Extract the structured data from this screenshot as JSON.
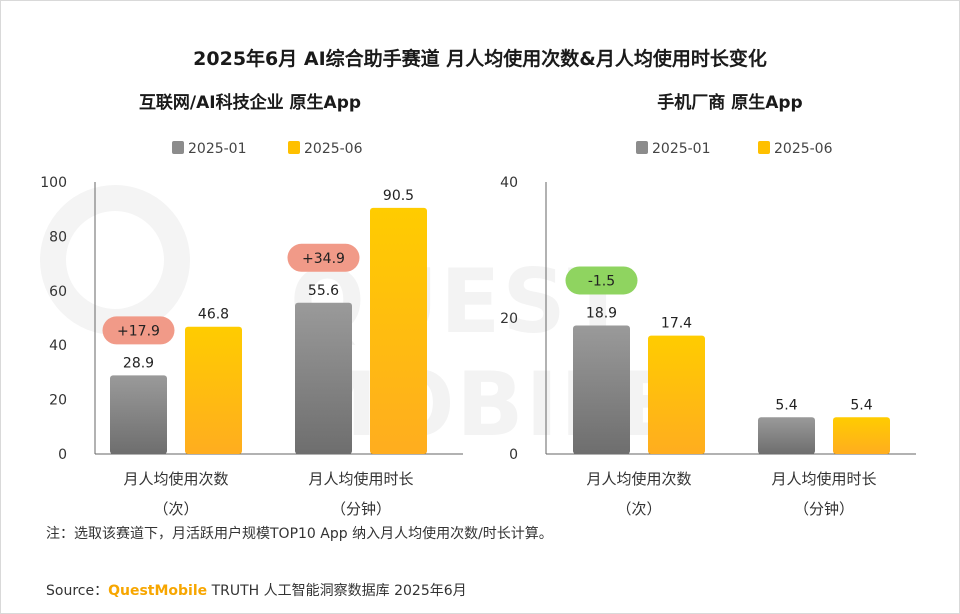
{
  "title": "2025年6月 AI综合助手赛道 月人均使用次数&月人均使用时长变化",
  "colors": {
    "series1": "#8c8c8c",
    "series2": "#ffc000",
    "diff_negative": "#f19a88",
    "diff_positive": "#8fd460"
  },
  "chart_data": [
    {
      "type": "bar",
      "title": "互联网/AI科技企业 原生App",
      "legend": [
        "2025-01",
        "2025-06"
      ],
      "ylim": [
        0,
        100
      ],
      "yticks": [
        0,
        20,
        40,
        60,
        80,
        100
      ],
      "categories": [
        {
          "line1": "月人均使用次数",
          "line2": "（次）"
        },
        {
          "line1": "月人均使用时长",
          "line2": "（分钟）"
        }
      ],
      "series": [
        {
          "name": "2025-01",
          "values": [
            28.9,
            55.6
          ],
          "labels": [
            "28.9",
            "55.6"
          ]
        },
        {
          "name": "2025-06",
          "values": [
            46.8,
            90.5
          ],
          "labels": [
            "46.8",
            "90.5"
          ]
        }
      ],
      "differences": [
        {
          "label": "+17.9",
          "sign": "positive"
        },
        {
          "label": "+34.9",
          "sign": "positive"
        }
      ]
    },
    {
      "type": "bar",
      "title": "手机厂商 原生App",
      "legend": [
        "2025-01",
        "2025-06"
      ],
      "ylim": [
        0,
        40
      ],
      "yticks": [
        0,
        20,
        40
      ],
      "categories": [
        {
          "line1": "月人均使用次数",
          "line2": "（次）"
        },
        {
          "line1": "月人均使用时长",
          "line2": "（分钟）"
        }
      ],
      "series": [
        {
          "name": "2025-01",
          "values": [
            18.9,
            5.4
          ],
          "labels": [
            "18.9",
            "5.4"
          ]
        },
        {
          "name": "2025-06",
          "values": [
            17.4,
            5.4
          ],
          "labels": [
            "17.4",
            "5.4"
          ]
        }
      ],
      "differences": [
        {
          "label": "-1.5",
          "sign": "negative"
        },
        null
      ]
    }
  ],
  "note": "注：选取该赛道下，月活跃用户规模TOP10 App 纳入月人均使用次数/时长计算。",
  "source": {
    "prefix": "Source：",
    "brand": "QuestMobile",
    "suffix": " TRUTH 人工智能洞察数据库 2025年6月"
  },
  "watermark": "QUEST MOBILE"
}
